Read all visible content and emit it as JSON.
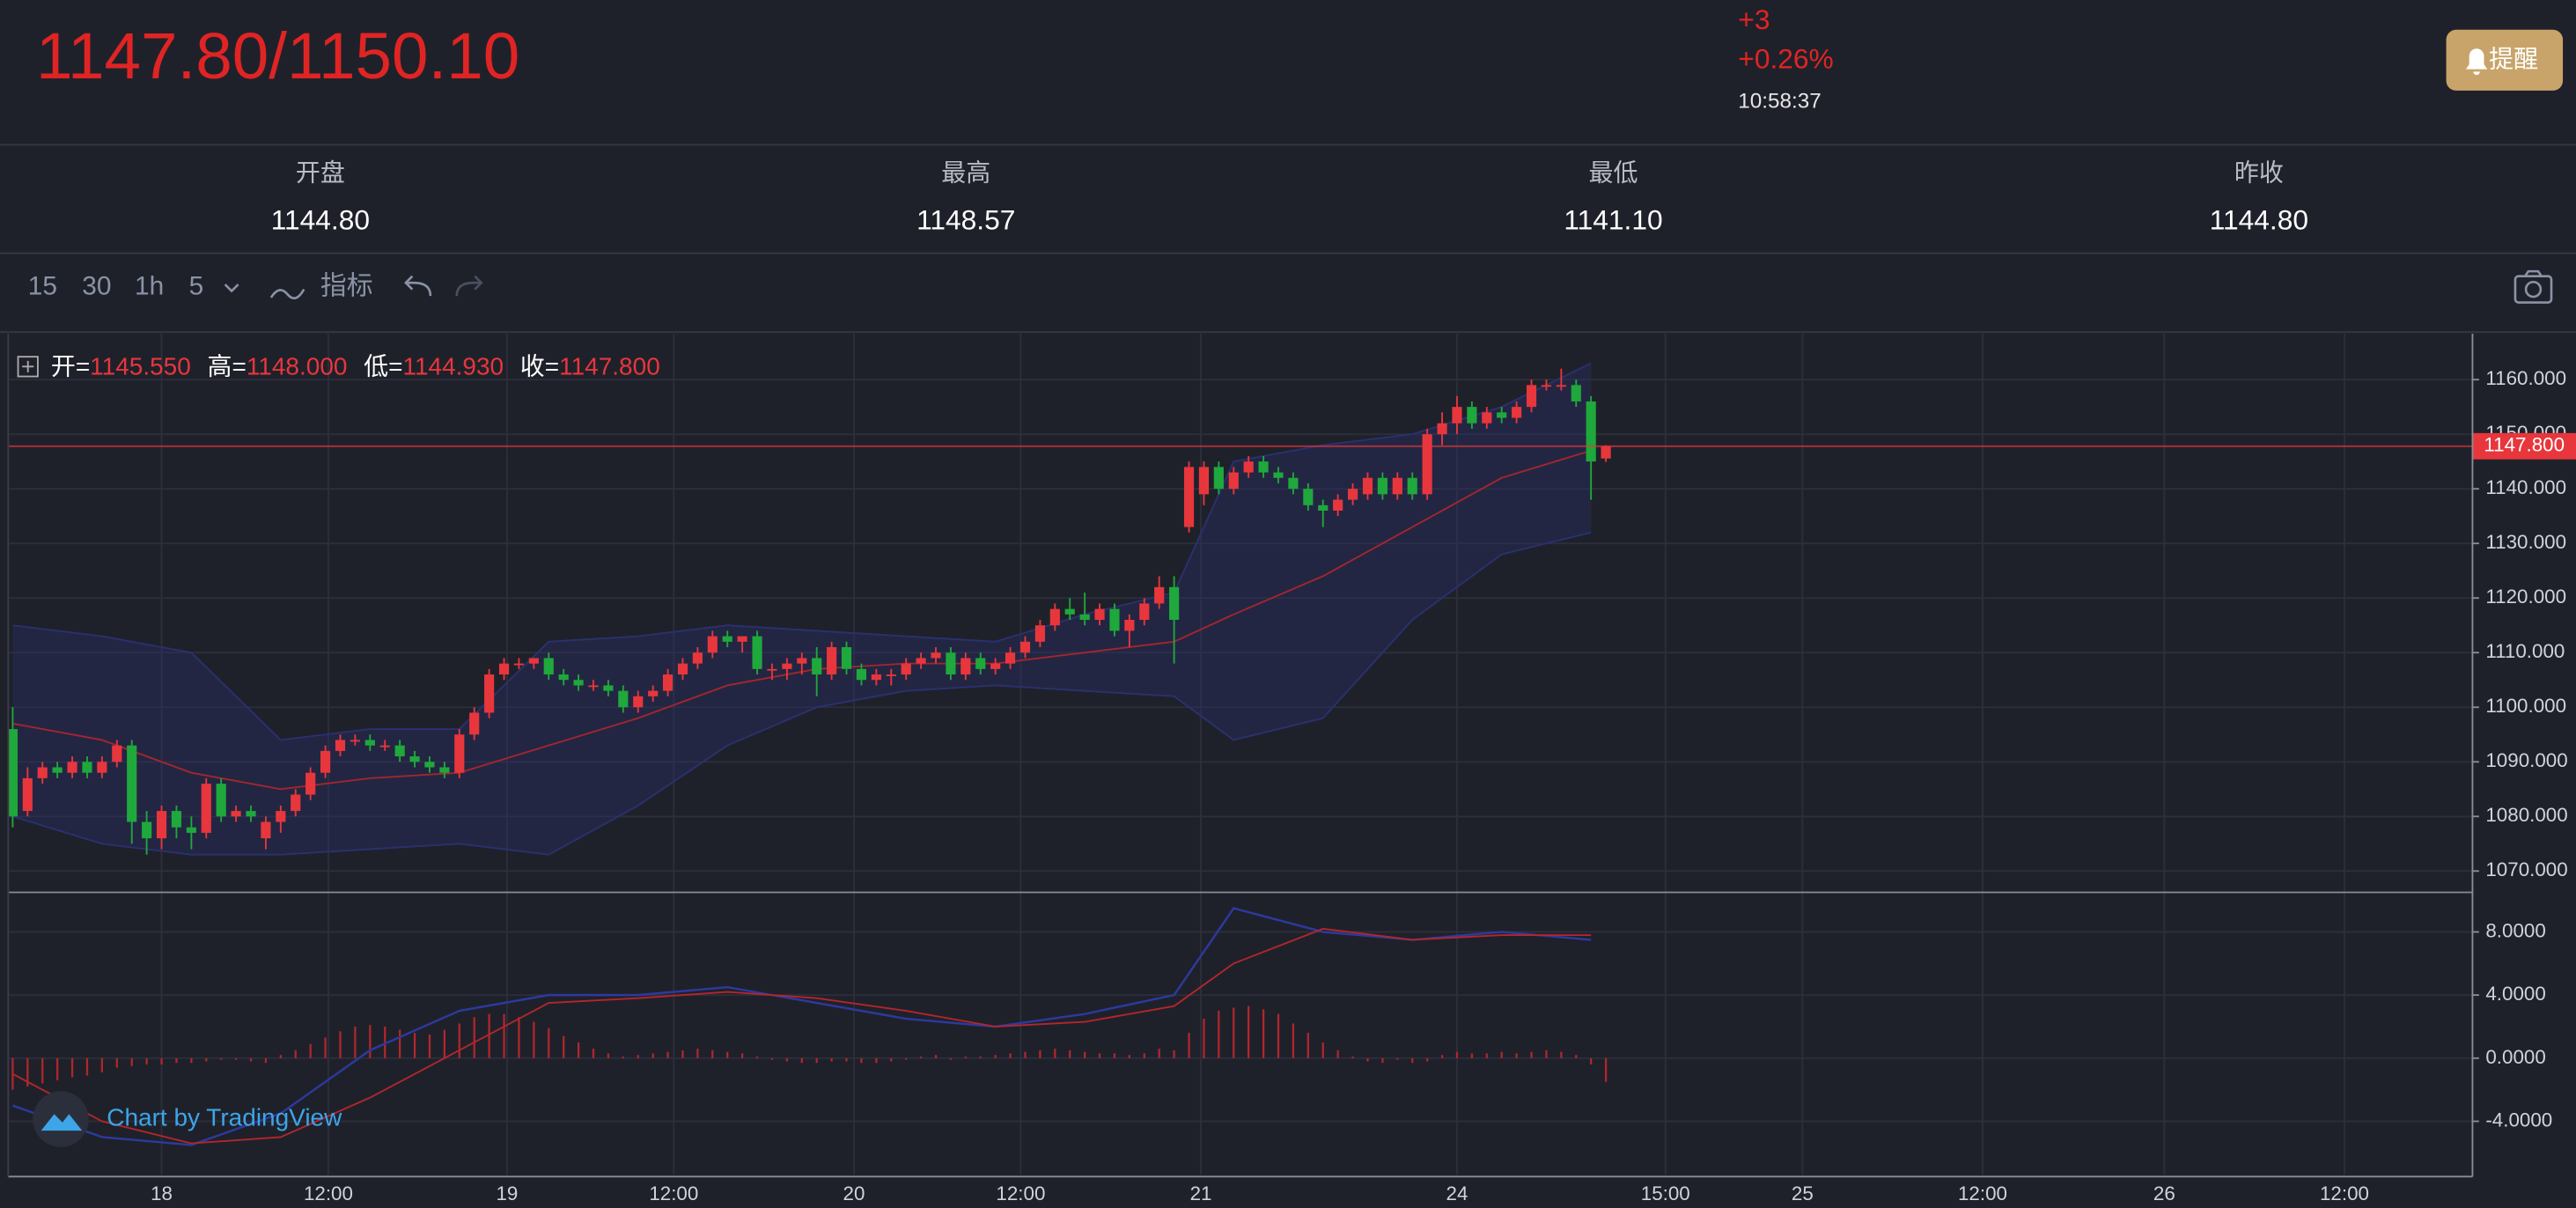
{
  "header": {
    "price": "1147.80/1150.10",
    "change": "+3",
    "change_pct": "+0.26%",
    "time": "10:58:37",
    "alert_button": "提醒"
  },
  "stats": [
    {
      "label": "开盘",
      "value": "1144.80"
    },
    {
      "label": "最高",
      "value": "1148.57"
    },
    {
      "label": "最低",
      "value": "1141.10"
    },
    {
      "label": "昨收",
      "value": "1144.80"
    }
  ],
  "toolbar": {
    "intervals": [
      "15",
      "30",
      "1h",
      "5"
    ],
    "active_interval": 2,
    "indicators": "指标"
  },
  "watermark": "Chart by TradingView",
  "chart_data": [
    {
      "type": "candlestick",
      "legend": [
        {
          "label": "开=",
          "value": "1145.550"
        },
        {
          "label": "高=",
          "value": "1148.000"
        },
        {
          "label": "低=",
          "value": "1144.930"
        },
        {
          "label": "收=",
          "value": "1147.800"
        }
      ],
      "up_color": "#e8363d",
      "down_color": "#1fa83c",
      "open": [
        1096,
        1081,
        1087,
        1089,
        1088,
        1090,
        1088,
        1090,
        1093,
        1079,
        1076,
        1081,
        1078,
        1077,
        1086,
        1080,
        1081,
        1076,
        1079,
        1081,
        1084,
        1088,
        1092,
        1094,
        1094,
        1093,
        1093,
        1091,
        1090,
        1089,
        1088,
        1095,
        1099,
        1106,
        1108,
        1108,
        1109,
        1106,
        1105,
        1104,
        1104,
        1103,
        1100,
        1102,
        1103,
        1106,
        1108,
        1110,
        1113,
        1112,
        1113,
        1107,
        1107,
        1108,
        1109,
        1106,
        1111,
        1107,
        1105,
        1106,
        1106,
        1108,
        1109,
        1110,
        1106,
        1109,
        1107,
        1108,
        1110,
        1112,
        1115,
        1118,
        1117,
        1116,
        1118,
        1114,
        1116,
        1119,
        1122,
        1133,
        1139,
        1144,
        1140,
        1143,
        1145,
        1143,
        1142,
        1140,
        1137,
        1136,
        1138,
        1139,
        1142,
        1139,
        1142,
        1139,
        1150,
        1152,
        1155,
        1152,
        1154,
        1153,
        1155,
        1159,
        1159,
        1159,
        1156,
        1145.55
      ],
      "high": [
        1100,
        1089,
        1090,
        1090,
        1091,
        1091,
        1091,
        1094,
        1094,
        1081,
        1082,
        1082,
        1080,
        1087,
        1087,
        1082,
        1082,
        1080,
        1082,
        1085,
        1089,
        1093,
        1095,
        1095,
        1095,
        1094,
        1094,
        1092,
        1091,
        1090,
        1096,
        1100,
        1107,
        1109,
        1109,
        1109,
        1110,
        1107,
        1106,
        1105,
        1105,
        1104,
        1103,
        1104,
        1107,
        1109,
        1111,
        1114,
        1114,
        1113,
        1114,
        1108,
        1109,
        1110,
        1111,
        1112,
        1112,
        1108,
        1107,
        1107,
        1109,
        1110,
        1111,
        1111,
        1110,
        1110,
        1109,
        1111,
        1113,
        1116,
        1119,
        1120,
        1121,
        1119,
        1119,
        1117,
        1120,
        1124,
        1124,
        1145,
        1145,
        1145,
        1144,
        1146,
        1146,
        1144,
        1143,
        1141,
        1138,
        1139,
        1141,
        1143,
        1143,
        1143,
        1143,
        1151,
        1154,
        1157,
        1156,
        1155,
        1155,
        1156,
        1160,
        1160,
        1162,
        1160,
        1157,
        1148
      ],
      "low": [
        1078,
        1080,
        1086,
        1087,
        1087,
        1087,
        1087,
        1089,
        1075,
        1073,
        1074,
        1076,
        1074,
        1076,
        1079,
        1079,
        1079,
        1074,
        1077,
        1080,
        1083,
        1087,
        1091,
        1093,
        1092,
        1092,
        1090,
        1089,
        1088,
        1087,
        1087,
        1094,
        1098,
        1105,
        1107,
        1107,
        1105,
        1104,
        1103,
        1103,
        1102,
        1099,
        1099,
        1101,
        1102,
        1105,
        1107,
        1109,
        1111,
        1110,
        1106,
        1105,
        1105,
        1106,
        1102,
        1105,
        1106,
        1104,
        1104,
        1104,
        1105,
        1107,
        1108,
        1105,
        1105,
        1106,
        1106,
        1107,
        1109,
        1111,
        1114,
        1116,
        1115,
        1115,
        1113,
        1111,
        1115,
        1118,
        1108,
        1132,
        1137,
        1139,
        1139,
        1142,
        1142,
        1141,
        1139,
        1136,
        1133,
        1135,
        1137,
        1138,
        1138,
        1138,
        1138,
        1138,
        1148,
        1150,
        1151,
        1151,
        1152,
        1152,
        1154,
        1158,
        1158,
        1155,
        1138,
        1144.93
      ],
      "close": [
        1080,
        1087,
        1089,
        1088,
        1090,
        1088,
        1090,
        1093,
        1079,
        1076,
        1081,
        1078,
        1077,
        1086,
        1080,
        1081,
        1080,
        1079,
        1081,
        1084,
        1088,
        1092,
        1094,
        1094,
        1093,
        1093,
        1091,
        1090,
        1089,
        1088,
        1095,
        1099,
        1106,
        1108,
        1108,
        1109,
        1106,
        1105,
        1104,
        1104,
        1103,
        1100,
        1102,
        1103,
        1106,
        1108,
        1110,
        1113,
        1112,
        1113,
        1107,
        1107,
        1108,
        1109,
        1106,
        1111,
        1107,
        1105,
        1106,
        1106,
        1108,
        1109,
        1110,
        1106,
        1109,
        1107,
        1108,
        1110,
        1112,
        1115,
        1118,
        1117,
        1116,
        1118,
        1114,
        1116,
        1119,
        1122,
        1116,
        1144,
        1144,
        1140,
        1143,
        1145,
        1143,
        1142,
        1140,
        1137,
        1136,
        1138,
        1140,
        1142,
        1139,
        1142,
        1139,
        1150,
        1152,
        1155,
        1152,
        1154,
        1153,
        1155,
        1159,
        1159,
        1159,
        1156,
        1145,
        1147.8
      ],
      "bands": {
        "x": [
          0,
          6,
          12,
          18,
          24,
          30,
          36,
          42,
          48,
          54,
          60,
          66,
          72,
          78,
          82,
          88,
          94,
          100,
          106
        ],
        "upper": [
          1115,
          1113,
          1110,
          1094,
          1096,
          1096,
          1112,
          1113,
          1115,
          1114,
          1113,
          1112,
          1117,
          1121,
          1145,
          1148,
          1150,
          1155,
          1163
        ],
        "mid": [
          1097,
          1094,
          1088,
          1085,
          1087,
          1088,
          1093,
          1098,
          1104,
          1107,
          1108,
          1108,
          1110,
          1112,
          1117,
          1124,
          1133,
          1142,
          1147
        ],
        "lower": [
          1080,
          1075,
          1073,
          1073,
          1074,
          1075,
          1073,
          1082,
          1093,
          1100,
          1103,
          1104,
          1103,
          1102,
          1094,
          1098,
          1116,
          1128,
          1132
        ],
        "band_color": "#2a3170",
        "mid_color": "#a3262f"
      },
      "last_price": {
        "value": 1147.8,
        "label": "1147.800"
      },
      "last_price_color": "#e8363d",
      "grid": true,
      "xlim": [
        -0.3,
        165.2
      ],
      "xticks": [
        {
          "value": 10.0,
          "label": "18"
        },
        {
          "value": 21.2,
          "label": "12:00"
        },
        {
          "value": 33.2,
          "label": "19"
        },
        {
          "value": 44.4,
          "label": "12:00"
        },
        {
          "value": 56.5,
          "label": "20"
        },
        {
          "value": 67.7,
          "label": "12:00"
        },
        {
          "value": 79.8,
          "label": "21"
        },
        {
          "value": 97.0,
          "label": "24"
        },
        {
          "value": 111.0,
          "label": "15:00"
        },
        {
          "value": 120.2,
          "label": "25"
        },
        {
          "value": 132.3,
          "label": "12:00"
        },
        {
          "value": 144.5,
          "label": "26"
        },
        {
          "value": 156.6,
          "label": "12:00"
        }
      ],
      "ylim": [
        1066.1,
        1168.4
      ],
      "yticks": [
        {
          "value": 1070,
          "label": "1070.000"
        },
        {
          "value": 1080,
          "label": "1080.000"
        },
        {
          "value": 1090,
          "label": "1090.000"
        },
        {
          "value": 1100,
          "label": "1100.000"
        },
        {
          "value": 1110,
          "label": "1110.000"
        },
        {
          "value": 1120,
          "label": "1120.000"
        },
        {
          "value": 1130,
          "label": "1130.000"
        },
        {
          "value": 1140,
          "label": "1140.000"
        },
        {
          "value": 1150,
          "label": "1150.000"
        },
        {
          "value": 1160,
          "label": "1160.000"
        }
      ]
    },
    {
      "type": "macd",
      "histogram": [
        -2,
        -1.8,
        -1.6,
        -1.4,
        -1.2,
        -1.1,
        -0.9,
        -0.6,
        -0.5,
        -0.4,
        -0.4,
        -0.3,
        -0.3,
        -0.2,
        -0.1,
        -0.1,
        -0.2,
        -0.3,
        0.2,
        0.5,
        0.9,
        1.3,
        1.7,
        2.0,
        2.1,
        2.0,
        1.8,
        1.6,
        1.5,
        1.8,
        2.2,
        2.6,
        2.8,
        2.8,
        2.6,
        2.3,
        1.9,
        1.4,
        1.0,
        0.6,
        0.3,
        0.1,
        0.2,
        0.3,
        0.4,
        0.5,
        0.6,
        0.5,
        0.4,
        0.3,
        0.1,
        -0.1,
        -0.2,
        -0.3,
        -0.3,
        -0.2,
        -0.2,
        -0.3,
        -0.3,
        -0.2,
        -0.1,
        0.1,
        0.2,
        -0.1,
        0.1,
        0.1,
        0.2,
        0.3,
        0.4,
        0.5,
        0.6,
        0.5,
        0.4,
        0.3,
        0.3,
        0.2,
        0.3,
        0.6,
        0.5,
        1.6,
        2.5,
        3.0,
        3.2,
        3.3,
        3.1,
        2.8,
        2.2,
        1.6,
        1.0,
        0.5,
        0.1,
        -0.2,
        -0.3,
        -0.1,
        -0.3,
        -0.2,
        0.2,
        0.4,
        0.3,
        0.3,
        0.4,
        0.3,
        0.4,
        0.5,
        0.4,
        0.2,
        -0.4,
        -1.5
      ],
      "hist_color": "#b3262c",
      "x": [
        0,
        6,
        12,
        18,
        24,
        30,
        36,
        42,
        48,
        54,
        60,
        66,
        72,
        78,
        82,
        88,
        94,
        100,
        106
      ],
      "dif": [
        -3,
        -5.0,
        -5.5,
        -3.5,
        0.5,
        3.0,
        4.0,
        4.0,
        4.5,
        3.5,
        2.5,
        2.0,
        2.8,
        4.0,
        9.5,
        8.0,
        7.5,
        8.0,
        7.5
      ],
      "dea": [
        -1,
        -4,
        -5.4,
        -5,
        -2.5,
        0.5,
        3.5,
        3.8,
        4.2,
        3.8,
        3,
        2,
        2.3,
        3.3,
        6,
        8.2,
        7.5,
        7.8,
        7.8
      ],
      "dif_color": "#2c3a9e",
      "dea_color": "#b3262c",
      "ylim": [
        -7.4,
        10.3
      ],
      "yticks": [
        {
          "value": -4,
          "label": "-4.0000"
        },
        {
          "value": 0,
          "label": "0.0000"
        },
        {
          "value": 4,
          "label": "4.0000"
        },
        {
          "value": 8,
          "label": "8.0000"
        }
      ]
    }
  ]
}
